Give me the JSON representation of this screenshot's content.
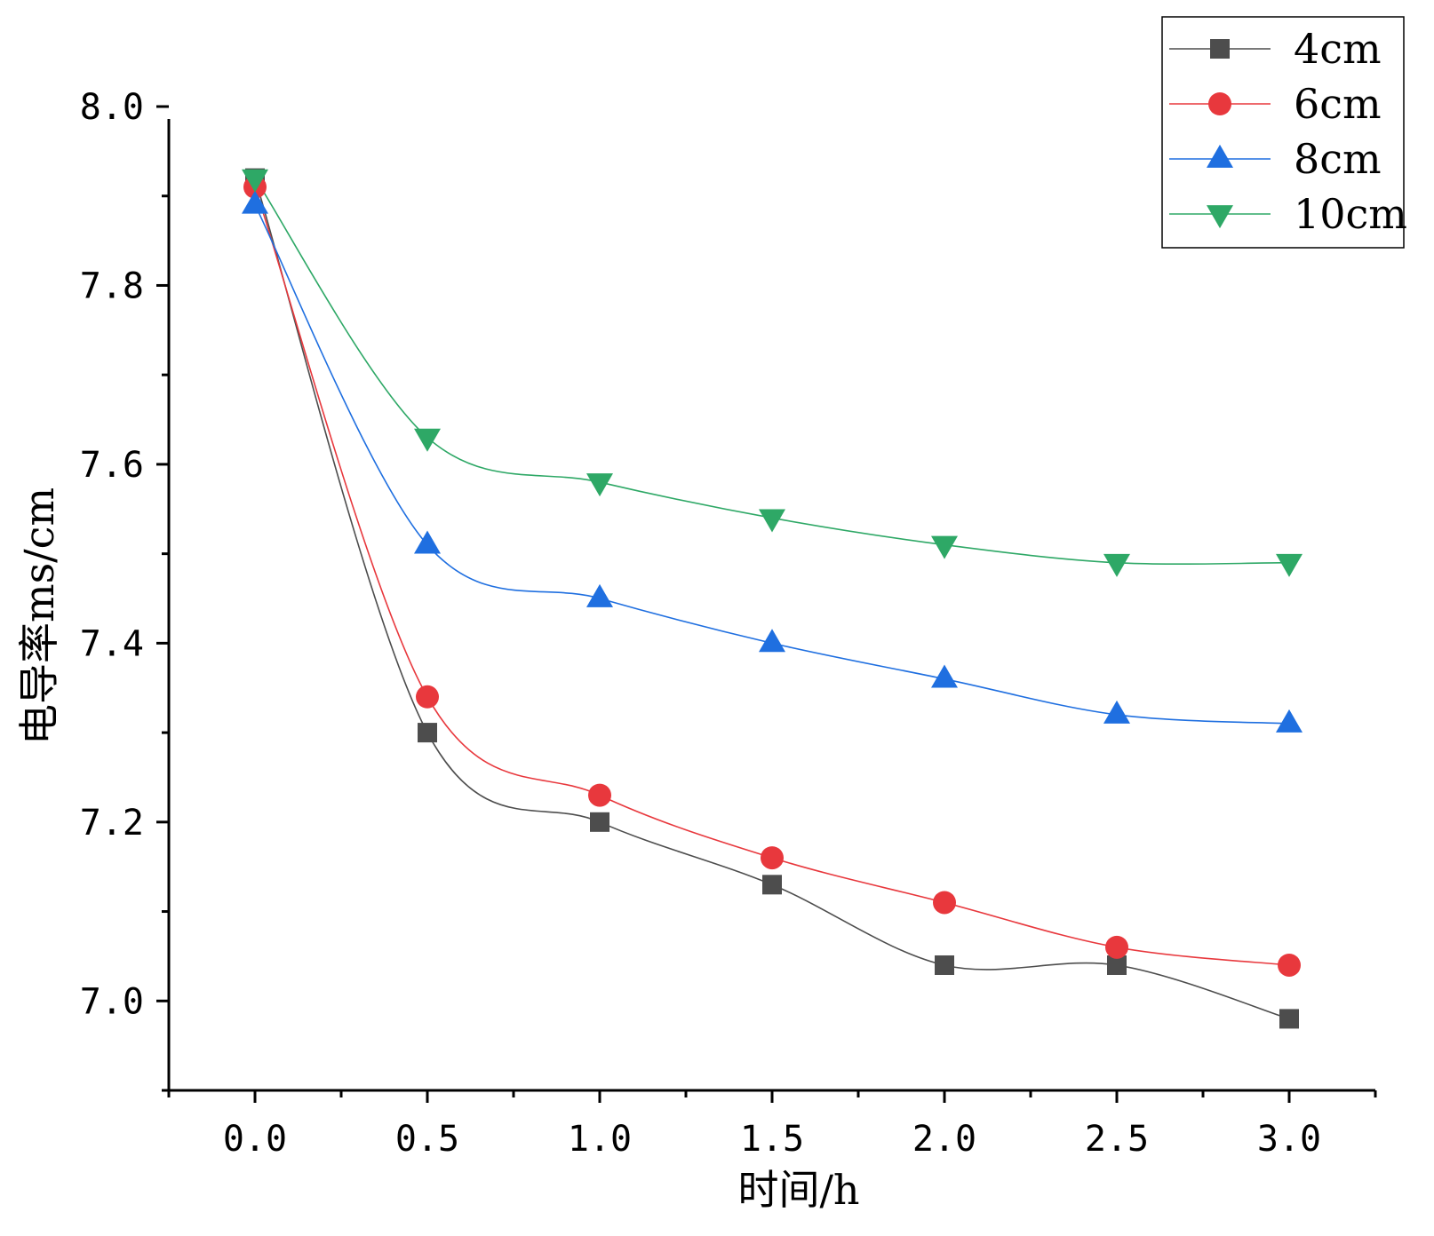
{
  "chart_data": {
    "type": "line",
    "title": "",
    "xlabel": "时间/h",
    "ylabel": "电导率ms/cm",
    "x": [
      0.0,
      0.5,
      1.0,
      1.5,
      2.0,
      2.5,
      3.0
    ],
    "xlim": [
      -0.25,
      3.25
    ],
    "ylim": [
      6.9,
      8.0
    ],
    "xticks": [
      "0.0",
      "0.5",
      "1.0",
      "1.5",
      "2.0",
      "2.5",
      "3.0"
    ],
    "yticks": [
      "7.0",
      "7.2",
      "7.4",
      "7.6",
      "7.8",
      "8.0"
    ],
    "grid": false,
    "legend_position": "top-right",
    "series": [
      {
        "name": "4cm",
        "marker": "square",
        "color": "#4d4d4d",
        "values": [
          7.92,
          7.3,
          7.2,
          7.13,
          7.04,
          7.04,
          6.98
        ]
      },
      {
        "name": "6cm",
        "marker": "circle",
        "color": "#e8383d",
        "values": [
          7.91,
          7.34,
          7.23,
          7.16,
          7.11,
          7.06,
          7.04
        ]
      },
      {
        "name": "8cm",
        "marker": "triangle-up",
        "color": "#1f6fe0",
        "values": [
          7.89,
          7.51,
          7.45,
          7.4,
          7.36,
          7.32,
          7.31
        ]
      },
      {
        "name": "10cm",
        "marker": "triangle-down",
        "color": "#2ea866",
        "values": [
          7.92,
          7.63,
          7.58,
          7.54,
          7.51,
          7.49,
          7.49
        ]
      }
    ]
  }
}
